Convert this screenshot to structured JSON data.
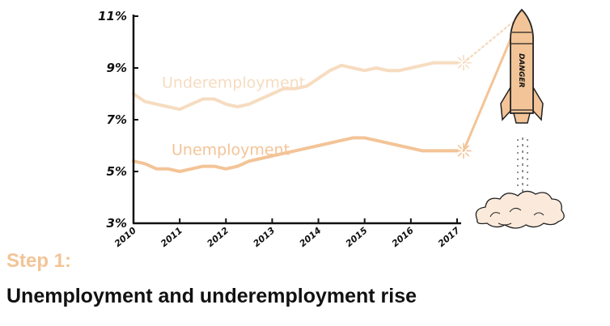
{
  "chart_data": {
    "type": "line",
    "x": [
      2010.0,
      2010.25,
      2010.5,
      2010.75,
      2011.0,
      2011.25,
      2011.5,
      2011.75,
      2012.0,
      2012.25,
      2012.5,
      2012.75,
      2013.0,
      2013.25,
      2013.5,
      2013.75,
      2014.0,
      2014.25,
      2014.5,
      2014.75,
      2015.0,
      2015.25,
      2015.5,
      2015.75,
      2016.0,
      2016.25,
      2016.5,
      2016.75,
      2017.0
    ],
    "series": [
      {
        "name": "Underemployment",
        "values": [
          8.0,
          7.7,
          7.6,
          7.5,
          7.4,
          7.6,
          7.8,
          7.8,
          7.6,
          7.5,
          7.6,
          7.8,
          8.0,
          8.2,
          8.2,
          8.3,
          8.6,
          8.9,
          9.1,
          9.0,
          8.9,
          9.0,
          8.9,
          8.9,
          9.0,
          9.1,
          9.2,
          9.2,
          9.2
        ],
        "color": "#f6dcc0",
        "style": "dotted",
        "projection_end": 10.8
      },
      {
        "name": "Unemployment",
        "values": [
          5.4,
          5.3,
          5.1,
          5.1,
          5.0,
          5.1,
          5.2,
          5.2,
          5.1,
          5.2,
          5.4,
          5.5,
          5.6,
          5.7,
          5.8,
          5.9,
          6.0,
          6.1,
          6.2,
          6.3,
          6.3,
          6.2,
          6.1,
          6.0,
          5.9,
          5.8,
          5.8,
          5.8,
          5.8
        ],
        "color": "#f3c497",
        "style": "solid",
        "projection_end": 10.4
      }
    ],
    "x_ticks": [
      "2010",
      "2011",
      "2012",
      "2013",
      "2014",
      "2015",
      "2016",
      "2017"
    ],
    "y_ticks": [
      "3%",
      "5%",
      "7%",
      "9%",
      "11%"
    ],
    "ylim": [
      3,
      11
    ],
    "xlim": [
      2010,
      2017
    ],
    "grid": false,
    "legend": "inline labels on lines",
    "title": "",
    "xlabel": "",
    "ylabel": ""
  },
  "rocket": {
    "label": "DANGER",
    "icon": "rocket-icon"
  },
  "step": {
    "label": "Step 1:"
  },
  "caption": {
    "text": "Unemployment and underemployment rise"
  }
}
